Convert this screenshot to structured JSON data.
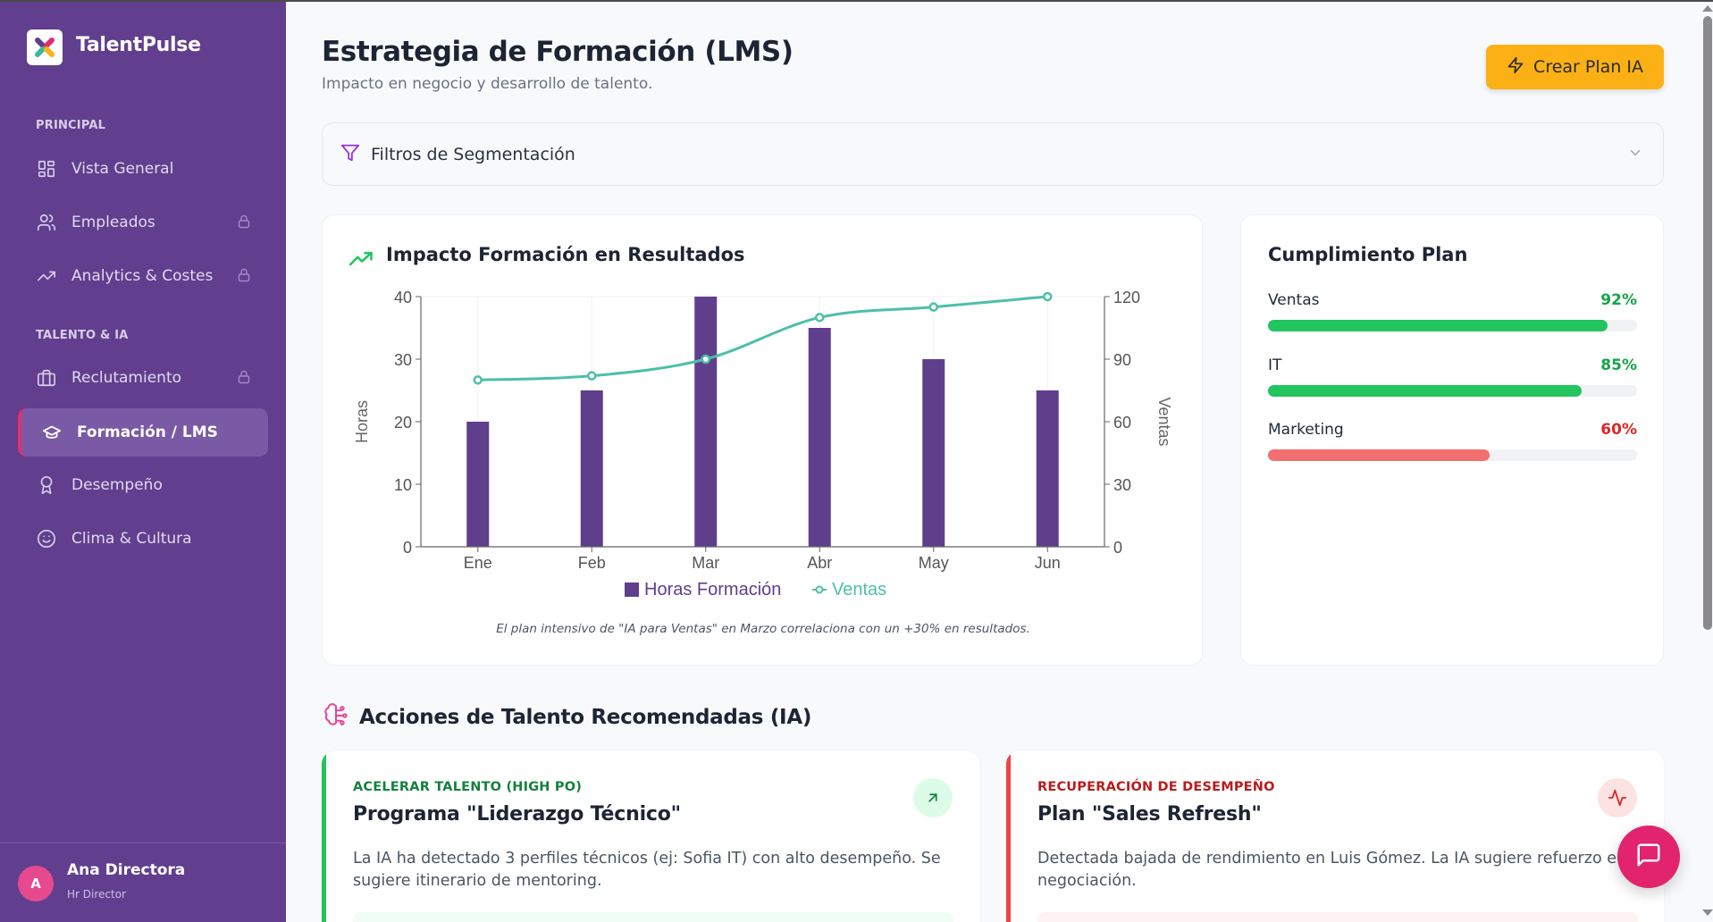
{
  "app": {
    "name": "TalentPulse"
  },
  "sidebar": {
    "sections": [
      {
        "label": "PRINCIPAL"
      },
      {
        "label": "TALENTO & IA"
      }
    ],
    "items": [
      {
        "label": "Vista General",
        "icon": "grid-icon",
        "locked": false
      },
      {
        "label": "Empleados",
        "icon": "users-icon",
        "locked": true
      },
      {
        "label": "Analytics & Costes",
        "icon": "trending-up-icon",
        "locked": true
      },
      {
        "label": "Reclutamiento",
        "icon": "briefcase-icon",
        "locked": true
      },
      {
        "label": "Formación / LMS",
        "icon": "graduation-cap-icon",
        "locked": false,
        "active": true
      },
      {
        "label": "Desempeño",
        "icon": "award-icon",
        "locked": false
      },
      {
        "label": "Clima & Cultura",
        "icon": "smile-icon",
        "locked": false
      }
    ],
    "user": {
      "initial": "A",
      "name": "Ana Directora",
      "role": "Hr Director"
    }
  },
  "header": {
    "title": "Estrategia de Formación (LMS)",
    "subtitle": "Impacto en negocio y desarrollo de talento.",
    "cta_label": "Crear Plan IA"
  },
  "filters": {
    "label": "Filtros de Segmentación"
  },
  "impact_card": {
    "title": "Impacto Formación en Resultados",
    "note": "El plan intensivo de \"IA para Ventas\" en Marzo correlaciona con un +30% en resultados."
  },
  "chart_data": {
    "type": "bar",
    "title": "Impacto Formación en Resultados",
    "categories": [
      "Ene",
      "Feb",
      "Mar",
      "Abr",
      "May",
      "Jun"
    ],
    "series": [
      {
        "name": "Horas Formación",
        "type": "bar",
        "axis": "left",
        "color": "#5f3f8c",
        "values": [
          20,
          25,
          40,
          35,
          30,
          25
        ]
      },
      {
        "name": "Ventas",
        "type": "line",
        "axis": "right",
        "color": "#4dbfa8",
        "values": [
          80,
          82,
          90,
          110,
          115,
          120
        ]
      }
    ],
    "xlabel": "",
    "ylabel": "Horas",
    "ylabel_right": "Ventas",
    "ylim": [
      0,
      40
    ],
    "ylim_right": [
      0,
      120
    ],
    "yticks": [
      0,
      10,
      20,
      30,
      40
    ],
    "yticks_right": [
      0,
      30,
      60,
      90,
      120
    ],
    "grid": "vertical",
    "legend_position": "bottom"
  },
  "plan_card": {
    "title": "Cumplimiento Plan",
    "rows": [
      {
        "name": "Ventas",
        "value": "92%",
        "pct": 92,
        "color": "#22c55e",
        "text_color": "#16a34a"
      },
      {
        "name": "IT",
        "value": "85%",
        "pct": 85,
        "color": "#22c55e",
        "text_color": "#16a34a"
      },
      {
        "name": "Marketing",
        "value": "60%",
        "pct": 60,
        "color": "#f26f6f",
        "text_color": "#dc2626"
      }
    ]
  },
  "recommendations": {
    "title": "Acciones de Talento Recomendadas (IA)",
    "cards": [
      {
        "tag": "ACELERAR TALENTO (HIGH PO)",
        "title": "Programa \"Liderazgo Técnico\"",
        "description": "La IA ha detectado 3 perfiles técnicos (ej: Sofia IT) con alto desempeño. Se sugiere itinerario de mentoring.",
        "icon": "arrow-up-right-icon",
        "accent": "#22c55e"
      },
      {
        "tag": "RECUPERACIÓN DE DESEMPEÑO",
        "title": "Plan \"Sales Refresh\"",
        "description": "Detectada bajada de rendimiento en Luis Gómez. La IA sugiere refuerzo en negociación.",
        "icon": "activity-icon",
        "accent": "#ef4444"
      }
    ]
  },
  "colors": {
    "sidebar_bg": "#613f8e",
    "active_indicator": "#e0306f",
    "cta_bg": "#fbb116",
    "fab_bg": "#e1246d",
    "bar": "#5f3f8c",
    "line": "#4dbfa8"
  }
}
